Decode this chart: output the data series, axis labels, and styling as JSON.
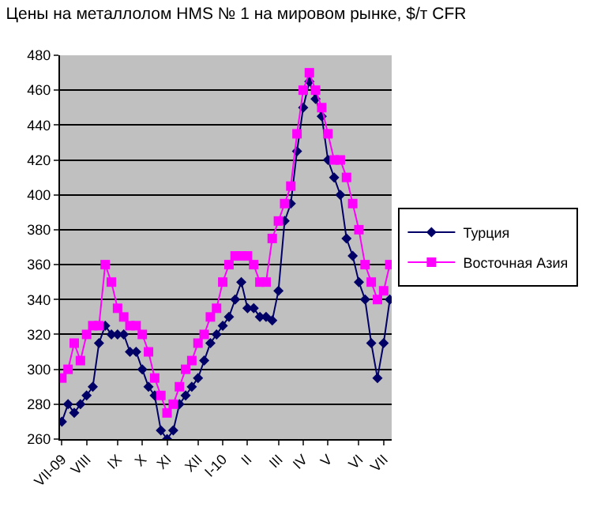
{
  "chart_data": {
    "type": "line",
    "title": "Цены на металлолом HMS № 1 на мировом рынке, $/т CFR",
    "categories": [
      "VII-09",
      null,
      null,
      null,
      "VIII",
      null,
      null,
      null,
      null,
      "IX",
      null,
      null,
      null,
      "X",
      null,
      null,
      null,
      "XI",
      null,
      null,
      null,
      null,
      "XII",
      null,
      null,
      null,
      "I-10",
      null,
      null,
      null,
      "II",
      null,
      null,
      null,
      null,
      "III",
      null,
      null,
      null,
      "IV",
      null,
      null,
      null,
      "V",
      null,
      null,
      null,
      null,
      "VI",
      null,
      null,
      null,
      "VII",
      null
    ],
    "series": [
      {
        "name": "Турция",
        "color": "#000066",
        "marker": "diamond",
        "values": [
          270,
          280,
          275,
          280,
          285,
          290,
          315,
          325,
          320,
          320,
          320,
          310,
          310,
          300,
          290,
          285,
          265,
          260,
          265,
          280,
          285,
          290,
          295,
          305,
          315,
          320,
          325,
          330,
          340,
          350,
          335,
          335,
          330,
          330,
          328,
          345,
          385,
          395,
          425,
          450,
          465,
          455,
          445,
          420,
          410,
          400,
          375,
          365,
          350,
          340,
          315,
          295,
          315,
          340
        ]
      },
      {
        "name": "Восточная Азия",
        "color": "#ff00ff",
        "marker": "square",
        "values": [
          295,
          300,
          315,
          305,
          320,
          325,
          325,
          360,
          350,
          335,
          330,
          325,
          325,
          320,
          310,
          295,
          285,
          275,
          280,
          290,
          300,
          305,
          315,
          320,
          330,
          335,
          350,
          360,
          365,
          365,
          365,
          360,
          350,
          350,
          375,
          385,
          395,
          405,
          435,
          460,
          470,
          460,
          450,
          435,
          420,
          420,
          410,
          395,
          380,
          360,
          350,
          340,
          345,
          360
        ]
      }
    ],
    "ylim": [
      260,
      480
    ],
    "yticks": [
      260,
      280,
      300,
      320,
      340,
      360,
      380,
      400,
      420,
      440,
      460,
      480
    ],
    "grid": "y",
    "legend": "right",
    "line_style": "solid"
  }
}
